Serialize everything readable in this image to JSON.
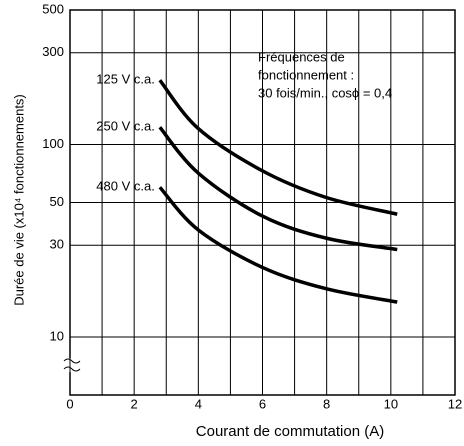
{
  "chart_data": {
    "type": "line",
    "ylabel": "Durée de vie (x10⁴ fonctionnements)",
    "xlabel": "Courant de commutation (A)",
    "annotation": [
      "Fréquences de",
      "fonctionnement :",
      "30 fois/min., cosϕ = 0,4"
    ],
    "x": [
      2.8,
      4,
      6,
      8,
      10.2
    ],
    "series": [
      {
        "name": "125 V c.a.",
        "color": "#000000",
        "values": [
          216,
          121,
          73,
          53,
          43.5
        ]
      },
      {
        "name": "250 V c.a.",
        "color": "#000000",
        "values": [
          123,
          71,
          42.5,
          32.6,
          28.5
        ]
      },
      {
        "name": "480 V c.a.",
        "color": "#000000",
        "values": [
          60,
          36,
          23,
          17.8,
          15.2
        ]
      }
    ],
    "xlim": [
      0,
      12
    ],
    "xticks": [
      0,
      2,
      4,
      6,
      8,
      10,
      12
    ],
    "x_minor_ticks": [
      1,
      3,
      5,
      7,
      9,
      11
    ],
    "ylim": [
      5,
      500
    ],
    "yticks": [
      10,
      30,
      50,
      100,
      300,
      500
    ],
    "log_y": true,
    "grid": true
  }
}
